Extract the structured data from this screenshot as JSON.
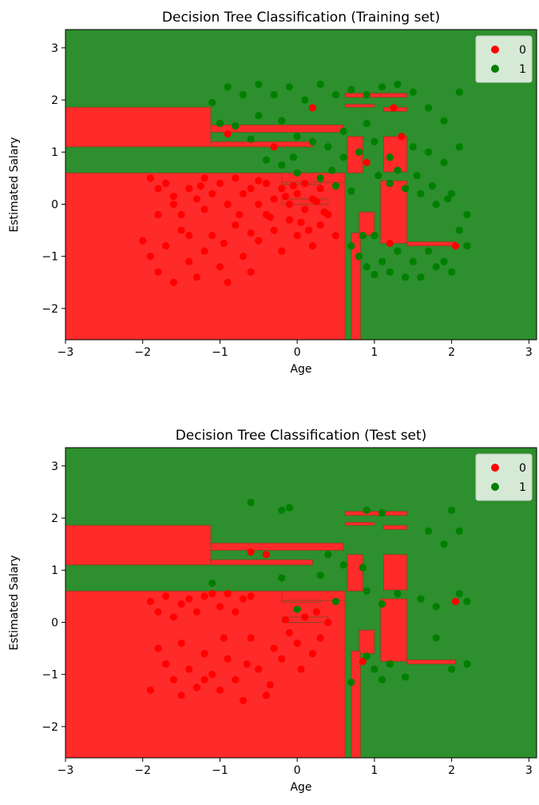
{
  "chart_data": [
    {
      "type": "scatter",
      "title": "Decision Tree Classification (Training set)",
      "xlabel": "Age",
      "ylabel": "Estimated Salary",
      "xlim": [
        -3,
        3.1
      ],
      "ylim": [
        -2.6,
        3.35
      ],
      "xticks": [
        "−3",
        "−2",
        "−1",
        "0",
        "1",
        "2",
        "3"
      ],
      "yticks": [
        "−2",
        "−1",
        "0",
        "1",
        "2",
        "3"
      ],
      "legend": {
        "position": "top-right",
        "entries": [
          "0",
          "1"
        ]
      },
      "colors": {
        "region_0": "#ff2a2a",
        "region_1": "#2d8f2d",
        "point_0": "#ff0000",
        "point_1": "#007f00"
      },
      "series": [
        {
          "name": "0",
          "points": [
            [
              -1.9,
              0.5
            ],
            [
              -1.8,
              0.3
            ],
            [
              -1.7,
              0.4
            ],
            [
              -1.6,
              0.0
            ],
            [
              -1.5,
              -0.2
            ],
            [
              -1.4,
              0.3
            ],
            [
              -1.3,
              0.1
            ],
            [
              -1.2,
              0.5
            ],
            [
              -1.1,
              0.2
            ],
            [
              -1.0,
              0.4
            ],
            [
              -0.9,
              0.0
            ],
            [
              -0.8,
              0.5
            ],
            [
              -0.7,
              0.2
            ],
            [
              -0.6,
              0.3
            ],
            [
              -0.5,
              0.0
            ],
            [
              -0.4,
              0.4
            ],
            [
              -0.3,
              0.1
            ],
            [
              -0.2,
              0.3
            ],
            [
              -0.1,
              0.0
            ],
            [
              0.0,
              0.2
            ],
            [
              0.1,
              0.4
            ],
            [
              0.2,
              0.1
            ],
            [
              0.3,
              0.3
            ],
            [
              -2.0,
              -0.7
            ],
            [
              -1.9,
              -1.0
            ],
            [
              -1.8,
              -1.3
            ],
            [
              -1.7,
              -0.8
            ],
            [
              -1.6,
              -1.5
            ],
            [
              -1.5,
              -0.5
            ],
            [
              -1.4,
              -1.1
            ],
            [
              -1.3,
              -1.4
            ],
            [
              -1.2,
              -0.9
            ],
            [
              -1.1,
              -0.6
            ],
            [
              -1.0,
              -1.2
            ],
            [
              -0.9,
              -1.5
            ],
            [
              -0.8,
              -0.4
            ],
            [
              -0.7,
              -1.0
            ],
            [
              -0.6,
              -1.3
            ],
            [
              -0.5,
              -0.7
            ],
            [
              -0.4,
              -0.2
            ],
            [
              -0.3,
              -0.5
            ],
            [
              -0.2,
              -0.9
            ],
            [
              -0.1,
              -0.3
            ],
            [
              0.0,
              -0.6
            ],
            [
              0.1,
              -0.1
            ],
            [
              0.2,
              -0.8
            ],
            [
              0.3,
              -0.4
            ],
            [
              0.4,
              -0.2
            ],
            [
              0.5,
              -0.6
            ],
            [
              -1.8,
              -0.2
            ],
            [
              -1.4,
              -0.6
            ],
            [
              -1.2,
              -0.1
            ],
            [
              -0.95,
              -0.75
            ],
            [
              -0.6,
              -0.55
            ],
            [
              -0.35,
              -0.25
            ],
            [
              -0.15,
              0.15
            ],
            [
              0.05,
              -0.35
            ],
            [
              0.25,
              0.05
            ],
            [
              0.35,
              -0.15
            ],
            [
              -0.9,
              1.35
            ],
            [
              -0.3,
              1.1
            ],
            [
              0.2,
              1.85
            ],
            [
              1.25,
              1.85
            ],
            [
              1.35,
              1.3
            ],
            [
              0.9,
              0.8
            ],
            [
              1.2,
              -0.75
            ],
            [
              2.05,
              -0.8
            ],
            [
              -1.6,
              0.15
            ],
            [
              -1.25,
              0.35
            ],
            [
              -0.75,
              -0.2
            ],
            [
              -0.5,
              0.45
            ],
            [
              -0.05,
              0.35
            ],
            [
              0.15,
              -0.5
            ]
          ]
        },
        {
          "name": "1",
          "points": [
            [
              -0.9,
              2.25
            ],
            [
              -0.7,
              2.1
            ],
            [
              -0.5,
              2.3
            ],
            [
              -0.3,
              2.1
            ],
            [
              -0.1,
              2.25
            ],
            [
              0.1,
              2.0
            ],
            [
              0.3,
              2.3
            ],
            [
              0.5,
              2.1
            ],
            [
              0.7,
              2.2
            ],
            [
              0.9,
              2.1
            ],
            [
              1.1,
              2.25
            ],
            [
              1.3,
              2.3
            ],
            [
              1.5,
              2.15
            ],
            [
              1.7,
              1.85
            ],
            [
              1.9,
              1.6
            ],
            [
              2.1,
              2.15
            ],
            [
              -1.1,
              1.95
            ],
            [
              -0.8,
              1.5
            ],
            [
              -0.5,
              1.7
            ],
            [
              -0.2,
              1.6
            ],
            [
              0.0,
              1.3
            ],
            [
              0.2,
              1.2
            ],
            [
              0.4,
              1.1
            ],
            [
              0.6,
              1.4
            ],
            [
              0.8,
              1.0
            ],
            [
              1.0,
              1.2
            ],
            [
              1.2,
              0.9
            ],
            [
              1.5,
              1.1
            ],
            [
              1.7,
              1.0
            ],
            [
              1.9,
              0.8
            ],
            [
              2.1,
              1.1
            ],
            [
              -1.0,
              1.55
            ],
            [
              -0.6,
              1.25
            ],
            [
              -0.4,
              0.85
            ],
            [
              -0.2,
              0.75
            ],
            [
              0.0,
              0.6
            ],
            [
              0.3,
              0.5
            ],
            [
              0.5,
              0.35
            ],
            [
              0.7,
              0.25
            ],
            [
              1.0,
              -0.6
            ],
            [
              1.2,
              0.4
            ],
            [
              1.4,
              0.3
            ],
            [
              1.6,
              0.2
            ],
            [
              1.8,
              0.0
            ],
            [
              2.0,
              0.2
            ],
            [
              2.2,
              -0.2
            ],
            [
              0.7,
              -0.8
            ],
            [
              0.8,
              -1.0
            ],
            [
              0.9,
              -1.2
            ],
            [
              1.0,
              -1.35
            ],
            [
              1.1,
              -1.1
            ],
            [
              1.2,
              -1.3
            ],
            [
              1.3,
              -0.9
            ],
            [
              1.4,
              -1.4
            ],
            [
              1.5,
              -1.1
            ],
            [
              1.6,
              -1.4
            ],
            [
              1.7,
              -0.9
            ],
            [
              1.8,
              -1.2
            ],
            [
              1.9,
              -1.1
            ],
            [
              2.0,
              -1.3
            ],
            [
              2.2,
              -0.8
            ],
            [
              2.1,
              -0.5
            ],
            [
              0.85,
              -0.6
            ],
            [
              1.05,
              0.55
            ],
            [
              1.3,
              0.65
            ],
            [
              1.55,
              0.55
            ],
            [
              1.75,
              0.35
            ],
            [
              1.95,
              0.1
            ],
            [
              0.6,
              0.9
            ],
            [
              0.9,
              1.55
            ],
            [
              -0.05,
              0.9
            ],
            [
              0.45,
              0.65
            ]
          ]
        }
      ]
    },
    {
      "type": "scatter",
      "title": "Decision Tree Classification (Test set)",
      "xlabel": "Age",
      "ylabel": "Estimated Salary",
      "xlim": [
        -3,
        3.1
      ],
      "ylim": [
        -2.6,
        3.35
      ],
      "xticks": [
        "−3",
        "−2",
        "−1",
        "0",
        "1",
        "2",
        "3"
      ],
      "yticks": [
        "−2",
        "−1",
        "0",
        "1",
        "2",
        "3"
      ],
      "legend": {
        "position": "top-right",
        "entries": [
          "0",
          "1"
        ]
      },
      "colors": {
        "region_0": "#ff2a2a",
        "region_1": "#2d8f2d",
        "point_0": "#ff0000",
        "point_1": "#007f00"
      },
      "series": [
        {
          "name": "0",
          "points": [
            [
              -1.9,
              0.4
            ],
            [
              -1.8,
              0.2
            ],
            [
              -1.7,
              0.5
            ],
            [
              -1.6,
              0.1
            ],
            [
              -1.5,
              0.35
            ],
            [
              -1.4,
              0.45
            ],
            [
              -1.3,
              0.2
            ],
            [
              -1.2,
              0.5
            ],
            [
              -1.1,
              0.55
            ],
            [
              -1.0,
              0.3
            ],
            [
              -0.9,
              0.55
            ],
            [
              -0.8,
              0.2
            ],
            [
              -0.7,
              0.45
            ],
            [
              -0.6,
              0.5
            ],
            [
              -1.8,
              -0.5
            ],
            [
              -1.7,
              -0.8
            ],
            [
              -1.6,
              -1.1
            ],
            [
              -1.5,
              -0.4
            ],
            [
              -1.4,
              -0.9
            ],
            [
              -1.3,
              -1.25
            ],
            [
              -1.2,
              -0.6
            ],
            [
              -1.1,
              -1.0
            ],
            [
              -1.0,
              -1.3
            ],
            [
              -0.9,
              -0.7
            ],
            [
              -0.8,
              -1.1
            ],
            [
              -0.7,
              -1.5
            ],
            [
              -0.6,
              -0.3
            ],
            [
              -0.5,
              -0.9
            ],
            [
              -0.4,
              -1.4
            ],
            [
              -0.3,
              -0.5
            ],
            [
              -0.2,
              -0.7
            ],
            [
              -0.1,
              -0.2
            ],
            [
              0.0,
              -0.4
            ],
            [
              0.1,
              0.1
            ],
            [
              0.2,
              -0.6
            ],
            [
              0.3,
              -0.3
            ],
            [
              0.4,
              0.0
            ],
            [
              -1.9,
              -1.3
            ],
            [
              -1.5,
              -1.4
            ],
            [
              -1.2,
              -1.1
            ],
            [
              -0.95,
              -0.3
            ],
            [
              -0.65,
              -0.8
            ],
            [
              -0.35,
              -1.2
            ],
            [
              -0.15,
              0.05
            ],
            [
              0.05,
              -0.9
            ],
            [
              0.25,
              0.2
            ],
            [
              -0.6,
              1.35
            ],
            [
              -0.4,
              1.3
            ],
            [
              0.85,
              -0.75
            ],
            [
              2.05,
              0.4
            ]
          ]
        },
        {
          "name": "1",
          "points": [
            [
              -0.6,
              2.3
            ],
            [
              -0.2,
              2.15
            ],
            [
              -0.1,
              2.2
            ],
            [
              0.9,
              2.15
            ],
            [
              1.1,
              2.1
            ],
            [
              2.0,
              2.15
            ],
            [
              1.7,
              1.75
            ],
            [
              1.9,
              1.5
            ],
            [
              2.1,
              1.75
            ],
            [
              0.4,
              1.3
            ],
            [
              0.6,
              1.1
            ],
            [
              0.3,
              0.9
            ],
            [
              -0.2,
              0.85
            ],
            [
              0.5,
              0.4
            ],
            [
              0.9,
              0.6
            ],
            [
              1.1,
              0.35
            ],
            [
              1.3,
              0.55
            ],
            [
              1.6,
              0.45
            ],
            [
              1.8,
              0.3
            ],
            [
              2.1,
              0.55
            ],
            [
              2.2,
              0.4
            ],
            [
              0.9,
              -0.65
            ],
            [
              1.0,
              -0.9
            ],
            [
              1.1,
              -1.1
            ],
            [
              1.2,
              -0.8
            ],
            [
              0.7,
              -1.15
            ],
            [
              1.4,
              -1.05
            ],
            [
              1.8,
              -0.3
            ],
            [
              2.2,
              -0.8
            ],
            [
              2.0,
              -0.9
            ],
            [
              0.0,
              0.25
            ],
            [
              -1.1,
              0.75
            ],
            [
              0.85,
              1.05
            ]
          ]
        }
      ]
    }
  ]
}
